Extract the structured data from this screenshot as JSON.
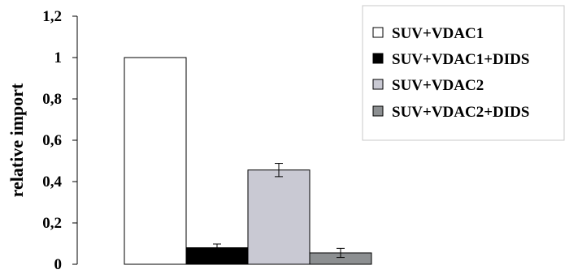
{
  "chart_data": {
    "type": "bar",
    "ylabel": "relative import",
    "ylim": [
      0,
      1.2
    ],
    "yticks": [
      0,
      0.2,
      0.4,
      0.6,
      0.8,
      1,
      1.2
    ],
    "ytick_labels": [
      "0",
      "0,2",
      "0,4",
      "0,6",
      "0,8",
      "1",
      "1,2"
    ],
    "grid": false,
    "legend_position": "top-right",
    "series": [
      {
        "name": "SUV+VDAC1",
        "value": 1.0,
        "error": null,
        "color": "#ffffff"
      },
      {
        "name": "SUV+VDAC1+DIDS",
        "value": 0.08,
        "error": 0.018,
        "color": "#000000"
      },
      {
        "name": "SUV+VDAC2",
        "value": 0.456,
        "error": 0.032,
        "color": "#c9c9d3"
      },
      {
        "name": "SUV+VDAC2+DIDS",
        "value": 0.055,
        "error": 0.022,
        "color": "#8c8f91"
      }
    ]
  }
}
